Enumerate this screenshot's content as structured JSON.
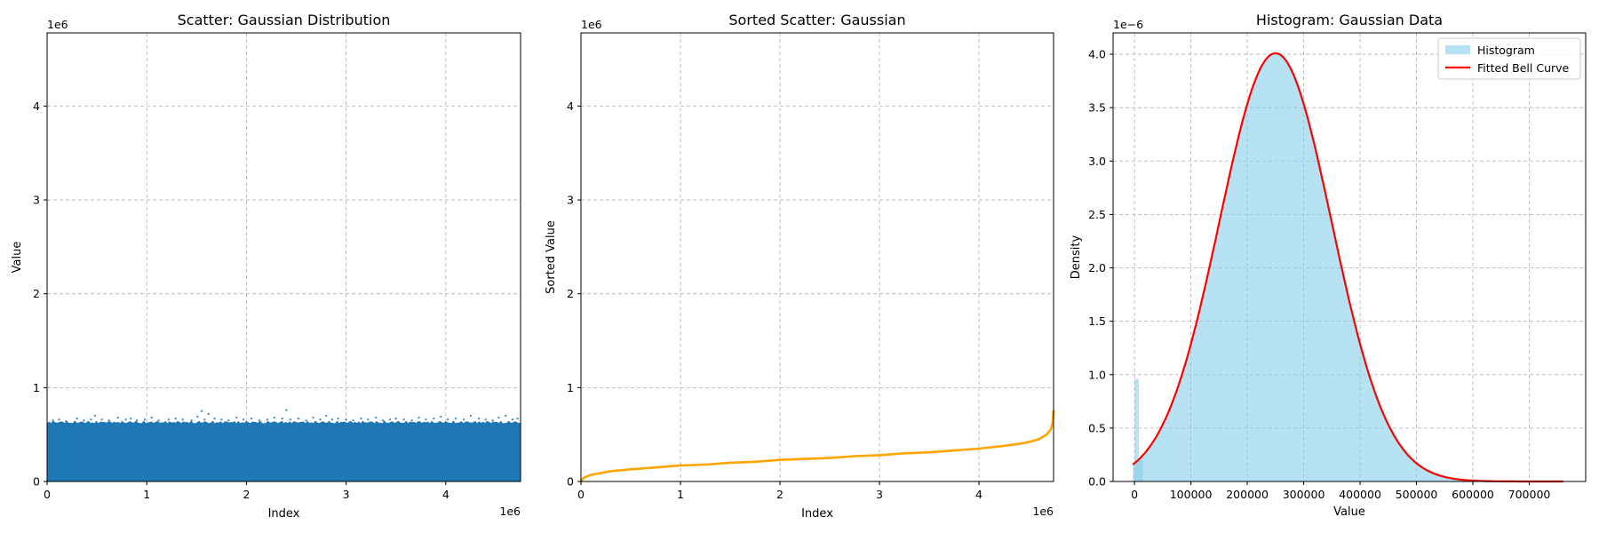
{
  "chart_data": [
    {
      "type": "scatter",
      "title": "Scatter: Gaussian Distribution",
      "xlabel": "Index",
      "ylabel": "Value",
      "x_offset_text": "1e6",
      "y_offset_text": "1e6",
      "xlim": [
        0,
        4.75
      ],
      "ylim": [
        0,
        4.78
      ],
      "x_ticks": [
        "0",
        "1",
        "2",
        "3",
        "4"
      ],
      "y_ticks": [
        "0",
        "1",
        "2",
        "3",
        "4"
      ],
      "grid": true,
      "series": [
        {
          "color": "#1f77b4",
          "band": {
            "x_range": [
              0,
              4.75
            ],
            "y_range": [
              0,
              0.62
            ]
          },
          "x": [
            0.06,
            0.12,
            0.19,
            0.3,
            0.37,
            0.44,
            0.48,
            0.55,
            0.62,
            0.71,
            0.79,
            0.84,
            0.9,
            0.98,
            1.05,
            1.12,
            1.22,
            1.29,
            1.36,
            1.45,
            1.51,
            1.55,
            1.58,
            1.62,
            1.68,
            1.75,
            1.82,
            1.9,
            1.97,
            2.05,
            2.13,
            2.21,
            2.28,
            2.36,
            2.4,
            2.44,
            2.52,
            2.6,
            2.67,
            2.74,
            2.8,
            2.86,
            2.92,
            3.0,
            3.07,
            3.15,
            3.22,
            3.3,
            3.37,
            3.44,
            3.5,
            3.58,
            3.66,
            3.73,
            3.8,
            3.88,
            3.95,
            4.02,
            4.1,
            4.18,
            4.25,
            4.33,
            4.4,
            4.47,
            4.53,
            4.6,
            4.67,
            4.72
          ],
          "y": [
            0.65,
            0.66,
            0.64,
            0.67,
            0.65,
            0.66,
            0.7,
            0.66,
            0.65,
            0.68,
            0.66,
            0.67,
            0.65,
            0.66,
            0.68,
            0.65,
            0.66,
            0.67,
            0.66,
            0.65,
            0.69,
            0.75,
            0.66,
            0.72,
            0.67,
            0.66,
            0.65,
            0.68,
            0.66,
            0.67,
            0.65,
            0.66,
            0.68,
            0.67,
            0.76,
            0.66,
            0.67,
            0.65,
            0.68,
            0.66,
            0.7,
            0.66,
            0.67,
            0.66,
            0.65,
            0.67,
            0.66,
            0.68,
            0.65,
            0.66,
            0.67,
            0.66,
            0.65,
            0.68,
            0.66,
            0.67,
            0.69,
            0.66,
            0.67,
            0.66,
            0.7,
            0.67,
            0.66,
            0.65,
            0.68,
            0.7,
            0.66,
            0.67
          ]
        }
      ]
    },
    {
      "type": "scatter",
      "title": "Sorted Scatter: Gaussian",
      "xlabel": "Index",
      "ylabel": "Sorted Value",
      "x_offset_text": "1e6",
      "y_offset_text": "1e6",
      "xlim": [
        0,
        4.75
      ],
      "ylim": [
        0,
        4.78
      ],
      "x_ticks": [
        "0",
        "1",
        "2",
        "3",
        "4"
      ],
      "y_ticks": [
        "0",
        "1",
        "2",
        "3",
        "4"
      ],
      "grid": true,
      "series": [
        {
          "color": "#ffa500",
          "x": [
            0,
            0.02,
            0.05,
            0.1,
            0.2,
            0.3,
            0.5,
            0.75,
            1.0,
            1.25,
            1.5,
            1.75,
            2.0,
            2.25,
            2.5,
            2.75,
            3.0,
            3.25,
            3.5,
            3.75,
            4.0,
            4.25,
            4.4,
            4.5,
            4.6,
            4.68,
            4.72,
            4.74,
            4.75
          ],
          "y": [
            0.0,
            0.03,
            0.05,
            0.07,
            0.09,
            0.11,
            0.13,
            0.15,
            0.17,
            0.18,
            0.2,
            0.21,
            0.23,
            0.24,
            0.25,
            0.27,
            0.28,
            0.3,
            0.31,
            0.33,
            0.35,
            0.38,
            0.4,
            0.42,
            0.45,
            0.5,
            0.55,
            0.62,
            0.75
          ]
        }
      ]
    },
    {
      "type": "histogram",
      "title": "Histogram: Gaussian Data",
      "xlabel": "Value",
      "ylabel": "Density",
      "y_offset_text": "1e−6",
      "xlim": [
        -38000,
        800000
      ],
      "ylim": [
        0,
        4.2
      ],
      "x_ticks": [
        "0",
        "100000",
        "200000",
        "300000",
        "400000",
        "500000",
        "600000",
        "700000"
      ],
      "y_ticks": [
        "0.0",
        "0.5",
        "1.0",
        "1.5",
        "2.0",
        "2.5",
        "3.0",
        "3.5",
        "4.0"
      ],
      "grid": true,
      "legend": {
        "position": "top-right",
        "entries": [
          "Histogram",
          "Fitted Bell Curve"
        ]
      },
      "series": [
        {
          "name": "Histogram",
          "color": "#87ceeb",
          "bin_width": 7600,
          "bins_x": [
            0,
            7600
          ],
          "bins_y": [
            0.96,
            0.2
          ]
        },
        {
          "name": "Fitted Bell Curve",
          "color": "#ff0000",
          "mean": 250000,
          "std": 99500,
          "x_range": [
            -3000,
            760000
          ]
        }
      ]
    }
  ]
}
